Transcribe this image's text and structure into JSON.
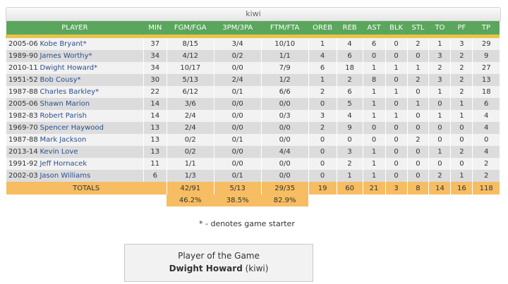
{
  "team_name": "kiwi",
  "columns": [
    "PLAYER",
    "MIN",
    "FGM/FGA",
    "3PM/3PA",
    "FTM/FTA",
    "OREB",
    "REB",
    "AST",
    "BLK",
    "STL",
    "TO",
    "PF",
    "TP"
  ],
  "rows": [
    {
      "year": "2005-06",
      "player": "Kobe Bryant*",
      "min": "37",
      "fg": "8/15",
      "tp3": "3/4",
      "ft": "10/10",
      "oreb": "1",
      "reb": "4",
      "ast": "6",
      "blk": "0",
      "stl": "2",
      "to": "1",
      "pf": "3",
      "pts": "29"
    },
    {
      "year": "1989-90",
      "player": "James Worthy*",
      "min": "34",
      "fg": "4/12",
      "tp3": "0/2",
      "ft": "1/1",
      "oreb": "4",
      "reb": "6",
      "ast": "0",
      "blk": "0",
      "stl": "0",
      "to": "3",
      "pf": "2",
      "pts": "9"
    },
    {
      "year": "2010-11",
      "player": "Dwight Howard*",
      "min": "34",
      "fg": "10/17",
      "tp3": "0/0",
      "ft": "7/9",
      "oreb": "6",
      "reb": "18",
      "ast": "1",
      "blk": "1",
      "stl": "1",
      "to": "2",
      "pf": "2",
      "pts": "27"
    },
    {
      "year": "1951-52",
      "player": "Bob Cousy*",
      "min": "30",
      "fg": "5/13",
      "tp3": "2/4",
      "ft": "1/2",
      "oreb": "1",
      "reb": "2",
      "ast": "8",
      "blk": "0",
      "stl": "2",
      "to": "3",
      "pf": "2",
      "pts": "13"
    },
    {
      "year": "1987-88",
      "player": "Charles Barkley*",
      "min": "22",
      "fg": "6/12",
      "tp3": "0/1",
      "ft": "6/6",
      "oreb": "2",
      "reb": "6",
      "ast": "1",
      "blk": "1",
      "stl": "0",
      "to": "1",
      "pf": "2",
      "pts": "18"
    },
    {
      "year": "2005-06",
      "player": "Shawn Marion",
      "min": "14",
      "fg": "3/6",
      "tp3": "0/0",
      "ft": "0/0",
      "oreb": "0",
      "reb": "5",
      "ast": "1",
      "blk": "0",
      "stl": "1",
      "to": "0",
      "pf": "1",
      "pts": "6"
    },
    {
      "year": "1982-83",
      "player": "Robert Parish",
      "min": "14",
      "fg": "2/4",
      "tp3": "0/0",
      "ft": "0/3",
      "oreb": "3",
      "reb": "4",
      "ast": "1",
      "blk": "1",
      "stl": "0",
      "to": "1",
      "pf": "1",
      "pts": "4"
    },
    {
      "year": "1969-70",
      "player": "Spencer Haywood",
      "min": "13",
      "fg": "2/4",
      "tp3": "0/0",
      "ft": "0/0",
      "oreb": "2",
      "reb": "9",
      "ast": "0",
      "blk": "0",
      "stl": "0",
      "to": "0",
      "pf": "0",
      "pts": "4"
    },
    {
      "year": "1987-88",
      "player": "Mark Jackson",
      "min": "13",
      "fg": "0/2",
      "tp3": "0/1",
      "ft": "0/0",
      "oreb": "0",
      "reb": "0",
      "ast": "0",
      "blk": "0",
      "stl": "2",
      "to": "0",
      "pf": "0",
      "pts": "0"
    },
    {
      "year": "2013-14",
      "player": "Kevin Love",
      "min": "13",
      "fg": "0/2",
      "tp3": "0/0",
      "ft": "4/4",
      "oreb": "0",
      "reb": "3",
      "ast": "1",
      "blk": "0",
      "stl": "0",
      "to": "1",
      "pf": "2",
      "pts": "4"
    },
    {
      "year": "1991-92",
      "player": "Jeff Hornacek",
      "min": "11",
      "fg": "1/1",
      "tp3": "0/0",
      "ft": "0/0",
      "oreb": "0",
      "reb": "2",
      "ast": "1",
      "blk": "0",
      "stl": "0",
      "to": "0",
      "pf": "0",
      "pts": "2"
    },
    {
      "year": "2002-03",
      "player": "Jason Williams",
      "min": "6",
      "fg": "1/3",
      "tp3": "0/1",
      "ft": "0/0",
      "oreb": "0",
      "reb": "1",
      "ast": "1",
      "blk": "0",
      "stl": "0",
      "to": "2",
      "pf": "1",
      "pts": "2"
    }
  ],
  "totals": {
    "label": "TOTALS",
    "fg": "42/91",
    "tp3": "5/13",
    "ft": "29/35",
    "oreb": "19",
    "reb": "60",
    "ast": "21",
    "blk": "3",
    "stl": "8",
    "to": "14",
    "pf": "16",
    "pts": "118"
  },
  "percentages": {
    "fg": "46.2%",
    "tp3": "38.5%",
    "ft": "82.9%"
  },
  "starter_note": "* - denotes game starter",
  "player_of_game": {
    "title": "Player of the Game",
    "name": "Dwight Howard",
    "team": "(kiwi)"
  },
  "colors": {
    "header_green": "#5aa65c",
    "header_stripe": "#e8c34a",
    "totals_orange": "#f7bd62",
    "player_link": "#2b4f8e"
  }
}
